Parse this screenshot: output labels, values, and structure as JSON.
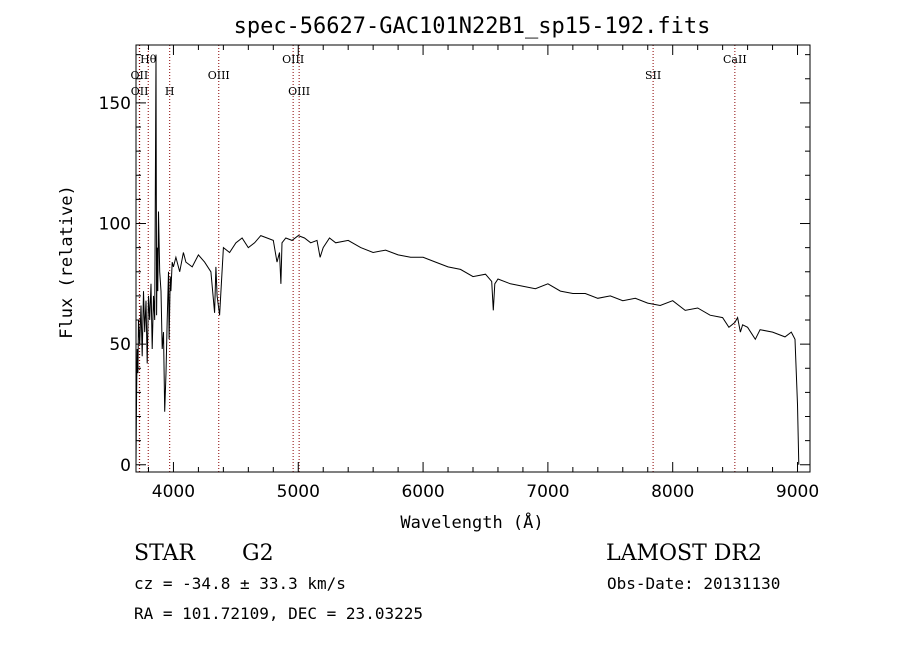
{
  "chart_data": {
    "type": "line",
    "title": "spec-56627-GAC101N22B1_sp15-192.fits",
    "xlabel": "Wavelength (Å)",
    "ylabel": "Flux (relative)",
    "xlim": [
      3700,
      9100
    ],
    "ylim": [
      -3,
      174
    ],
    "x_ticks": [
      4000,
      5000,
      6000,
      7000,
      8000,
      9000
    ],
    "y_ticks": [
      0,
      50,
      100,
      150
    ],
    "grid": false,
    "series": [
      {
        "x": [
          3700,
          3705,
          3710,
          3715,
          3720,
          3730,
          3740,
          3750,
          3760,
          3770,
          3780,
          3790,
          3800,
          3810,
          3820,
          3830,
          3840,
          3850,
          3860,
          3865,
          3870,
          3875,
          3880,
          3890,
          3900,
          3910,
          3920,
          3930,
          3940,
          3950,
          3960,
          3965,
          3970,
          3975,
          3980,
          3990,
          4000,
          4020,
          4050,
          4080,
          4100,
          4150,
          4200,
          4250,
          4300,
          4330,
          4340,
          4350,
          4370,
          4400,
          4450,
          4500,
          4550,
          4600,
          4650,
          4700,
          4750,
          4800,
          4830,
          4850,
          4861,
          4870,
          4900,
          4950,
          5000,
          5050,
          5100,
          5150,
          5175,
          5200,
          5250,
          5300,
          5400,
          5500,
          5600,
          5700,
          5800,
          5900,
          6000,
          6100,
          6200,
          6300,
          6400,
          6500,
          6550,
          6563,
          6575,
          6600,
          6700,
          6800,
          6900,
          7000,
          7100,
          7200,
          7300,
          7400,
          7500,
          7600,
          7700,
          7800,
          7900,
          8000,
          8100,
          8200,
          8300,
          8400,
          8450,
          8498,
          8520,
          8542,
          8560,
          8600,
          8662,
          8700,
          8800,
          8900,
          8950,
          8980,
          9000,
          9010
        ],
        "y": [
          0,
          30,
          48,
          38,
          60,
          50,
          66,
          45,
          72,
          55,
          68,
          42,
          70,
          60,
          75,
          48,
          70,
          60,
          170,
          62,
          90,
          72,
          105,
          80,
          72,
          48,
          55,
          22,
          38,
          60,
          80,
          52,
          65,
          78,
          72,
          84,
          82,
          86,
          80,
          88,
          84,
          82,
          87,
          84,
          80,
          63,
          82,
          70,
          62,
          90,
          88,
          92,
          94,
          90,
          92,
          95,
          94,
          93,
          84,
          88,
          75,
          92,
          94,
          93,
          95,
          94,
          92,
          93,
          86,
          90,
          94,
          92,
          93,
          90,
          88,
          89,
          87,
          86,
          86,
          84,
          82,
          81,
          78,
          79,
          76,
          64,
          75,
          77,
          75,
          74,
          73,
          75,
          72,
          71,
          71,
          69,
          70,
          68,
          69,
          67,
          66,
          68,
          64,
          65,
          62,
          61,
          57,
          59,
          61,
          55,
          58,
          57,
          52,
          56,
          55,
          53,
          55,
          52,
          25,
          0
        ]
      }
    ],
    "annotations": [
      {
        "label": "OII",
        "x": 3727
      },
      {
        "label": "OII",
        "x": 3729
      },
      {
        "label": "Hθ",
        "x": 3798
      },
      {
        "label": "H",
        "x": 3970
      },
      {
        "label": "OIII",
        "x": 4363
      },
      {
        "label": "OIII",
        "x": 4959
      },
      {
        "label": "OIII",
        "x": 5007
      },
      {
        "label": "SII",
        "x": 7843
      },
      {
        "label": "CaII",
        "x": 8498
      }
    ]
  },
  "info": {
    "object_class": "STAR",
    "subclass": "G2",
    "survey": "LAMOST DR2",
    "redshift_text": "cz = -34.8 ± 33.3 km/s",
    "obs_date": "Obs-Date: 20131130",
    "coords": "RA = 101.72109, DEC =  23.03225"
  },
  "colors": {
    "spectrum": "#000000",
    "line_markers": "#8b0000"
  }
}
